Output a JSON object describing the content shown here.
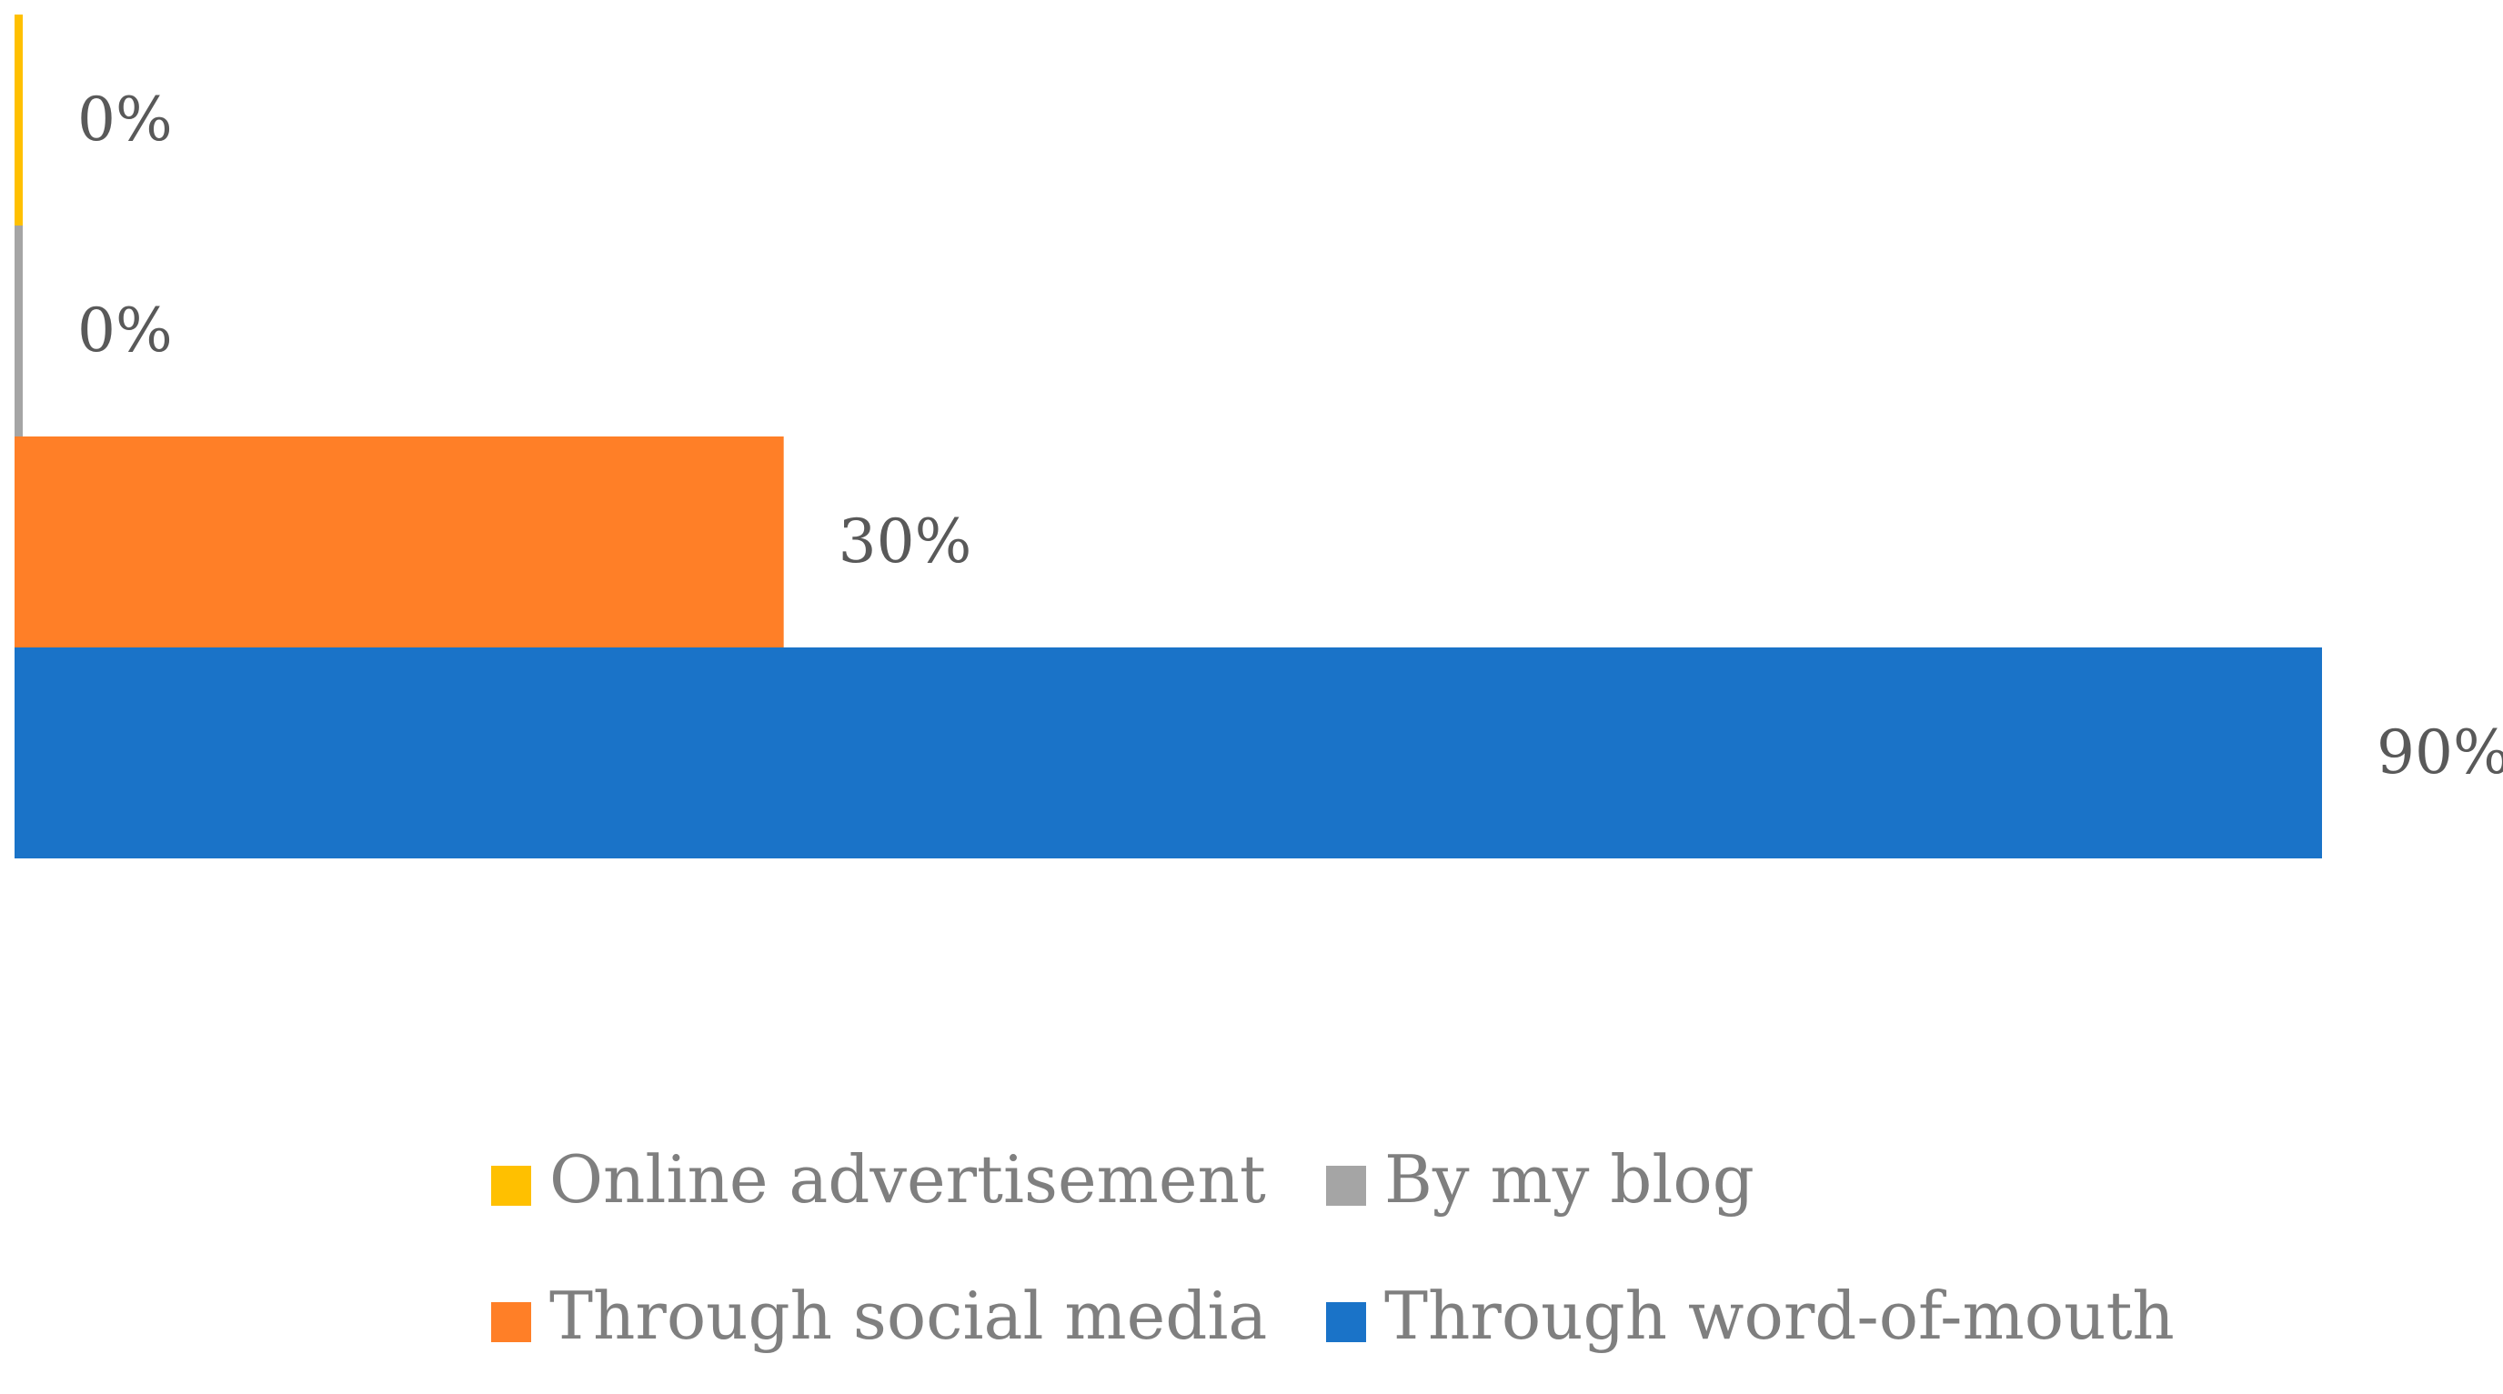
{
  "chart_data": {
    "type": "bar",
    "orientation": "horizontal",
    "categories": [
      "Online advertisement",
      "By my blog",
      "Through social media",
      "Through word-of-mouth"
    ],
    "series": [
      {
        "name": "Online advertisement",
        "color": "#FFC000",
        "value": 0,
        "label": "0%"
      },
      {
        "name": "By my blog",
        "color": "#A5A5A5",
        "value": 0,
        "label": "0%"
      },
      {
        "name": "Through social media",
        "color": "#FF7F27",
        "value": 30,
        "label": "30%"
      },
      {
        "name": "Through word-of-mouth",
        "color": "#1A73C8",
        "value": 90,
        "label": "90%"
      }
    ],
    "xlim": [
      0,
      90
    ],
    "unit": "%",
    "grid": false,
    "legend_position": "bottom"
  }
}
